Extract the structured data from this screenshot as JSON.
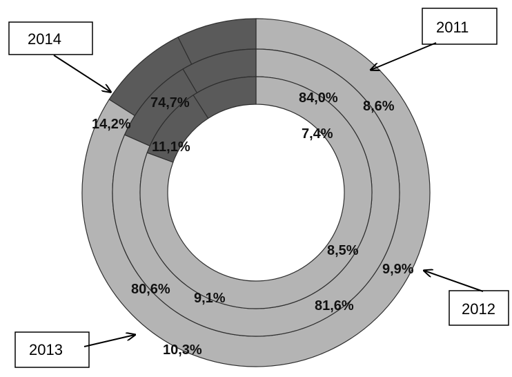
{
  "chart_data": {
    "type": "pie",
    "rings": [
      {
        "name": "2014",
        "values": [
          74.7,
          14.2,
          11.1
        ],
        "labels": [
          "74,7%",
          "14,2%",
          "11,1%"
        ]
      },
      {
        "name": "2011",
        "values": [
          84.0,
          8.6,
          7.4
        ],
        "labels": [
          "84,0%",
          "8,6%",
          "7,4%"
        ]
      },
      {
        "name": "2012",
        "values": [
          81.6,
          9.9,
          8.5
        ],
        "labels": [
          "81,6%",
          "9,9%",
          "8,5%"
        ]
      },
      {
        "name": "2013",
        "values": [
          80.6,
          10.3,
          9.1
        ],
        "labels": [
          "80,6%",
          "10,3%",
          "9,1%"
        ]
      }
    ],
    "colors": {
      "dark": "#5a5a5a",
      "light": "#b4b4b4",
      "edge": "#2e2e2e"
    }
  },
  "callouts": {
    "y2011": "2011",
    "y2012": "2012",
    "y2013": "2013",
    "y2014": "2014"
  }
}
